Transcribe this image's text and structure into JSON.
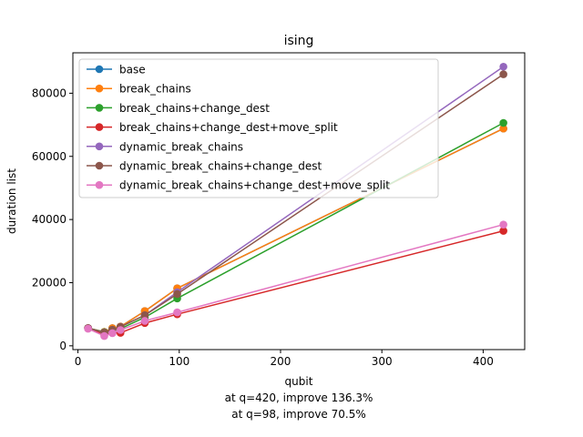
{
  "chart_data": {
    "type": "line",
    "title": "ising",
    "xlabel": "qubit",
    "ylabel": "duration list",
    "footnotes": [
      "at q=420, improve 136.3%",
      "at q=98, improve 70.5%"
    ],
    "xlim": [
      -5,
      441
    ],
    "ylim": [
      -1200,
      92800
    ],
    "xticks": [
      0,
      100,
      200,
      300,
      400
    ],
    "yticks": [
      0,
      20000,
      40000,
      60000,
      80000
    ],
    "legend_position": "upper left",
    "grid": false,
    "x": [
      10,
      26,
      34,
      42,
      66,
      98,
      420
    ],
    "series": [
      {
        "name": "base",
        "color": "#1f77b4",
        "values": [
          5600,
          4400,
          5600,
          6100,
          11000,
          18200,
          68800
        ]
      },
      {
        "name": "break_chains",
        "color": "#ff7f0e",
        "values": [
          5600,
          4400,
          5600,
          6100,
          11000,
          18200,
          68800
        ]
      },
      {
        "name": "break_chains+change_dest",
        "color": "#2ca02c",
        "values": [
          5600,
          4300,
          5100,
          5400,
          9000,
          15000,
          70600
        ]
      },
      {
        "name": "break_chains+change_dest+move_split",
        "color": "#d62728",
        "values": [
          5600,
          3600,
          4100,
          4100,
          7200,
          10000,
          36400
        ]
      },
      {
        "name": "dynamic_break_chains",
        "color": "#9467bd",
        "values": [
          5600,
          4200,
          5100,
          6000,
          9700,
          17000,
          88400
        ]
      },
      {
        "name": "dynamic_break_chains+change_dest",
        "color": "#8c564b",
        "values": [
          5600,
          4200,
          5100,
          6000,
          9700,
          16400,
          86000
        ]
      },
      {
        "name": "dynamic_break_chains+change_dest+move_split",
        "color": "#e377c2",
        "values": [
          5400,
          3100,
          4000,
          5000,
          7900,
          10600,
          38400
        ]
      }
    ]
  }
}
